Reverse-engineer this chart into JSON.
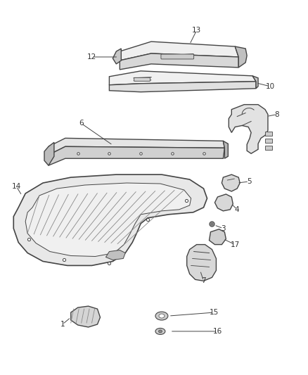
{
  "background_color": "#ffffff",
  "fig_width": 4.38,
  "fig_height": 5.33,
  "dpi": 100,
  "line_color": "#444444",
  "text_color": "#333333",
  "font_size": 7.5
}
